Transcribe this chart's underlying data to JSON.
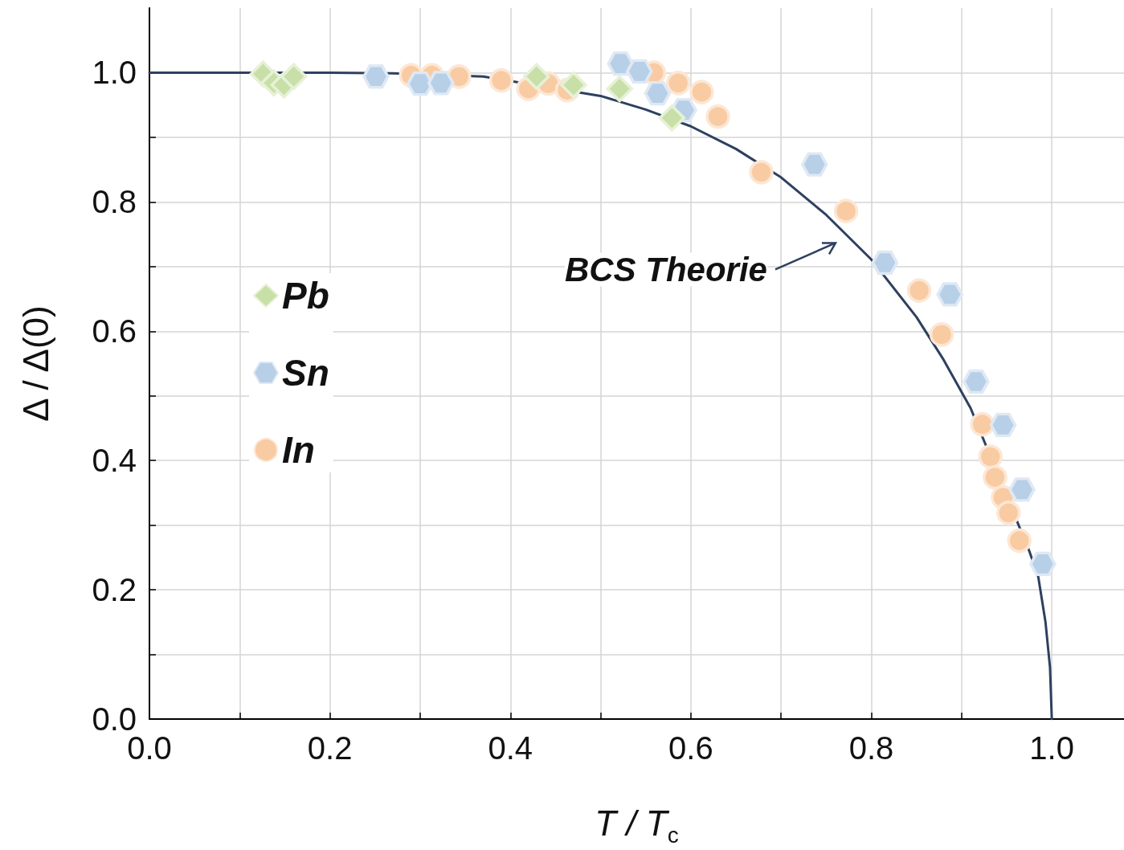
{
  "chart_data": {
    "type": "scatter",
    "xlabel": "T / T$_{c}$",
    "ylabel": "Δ / Δ(0)",
    "xlim": [
      0,
      1.08
    ],
    "ylim": [
      0,
      1.1
    ],
    "xticks": [
      {
        "value": 0,
        "label": "0.0"
      },
      {
        "value": 0.1,
        "label": null
      },
      {
        "value": 0.2,
        "label": "0.2"
      },
      {
        "value": 0.3,
        "label": null
      },
      {
        "value": 0.4,
        "label": "0.4"
      },
      {
        "value": 0.5,
        "label": null
      },
      {
        "value": 0.6,
        "label": "0.6"
      },
      {
        "value": 0.7,
        "label": null
      },
      {
        "value": 0.8,
        "label": "0.8"
      },
      {
        "value": 0.9,
        "label": null
      },
      {
        "value": 1,
        "label": "1.0"
      }
    ],
    "yticks": [
      {
        "value": 0,
        "label": "0.0"
      },
      {
        "value": 0.1,
        "label": null
      },
      {
        "value": 0.2,
        "label": "0.2"
      },
      {
        "value": 0.3,
        "label": null
      },
      {
        "value": 0.4,
        "label": "0.4"
      },
      {
        "value": 0.5,
        "label": null
      },
      {
        "value": 0.6,
        "label": "0.6"
      },
      {
        "value": 0.7,
        "label": null
      },
      {
        "value": 0.8,
        "label": "0.8"
      },
      {
        "value": 0.9,
        "label": null
      },
      {
        "value": 1,
        "label": "1.0"
      }
    ],
    "grid": true,
    "legend": "left",
    "annotations": [
      "BCS Theorie"
    ],
    "series": [
      {
        "type": "line",
        "color": "#2e4060",
        "marker": "none",
        "line_style": "solid",
        "x": [
          0,
          0.1,
          0.2,
          0.27,
          0.37,
          0.5,
          0.55,
          0.6,
          0.65,
          0.7,
          0.75,
          0.8,
          0.85,
          0.88,
          0.91,
          0.975,
          0.985,
          0.993,
          0.998,
          1
        ],
        "values": [
          1,
          1,
          1,
          0.999,
          0.994,
          0.964,
          0.943,
          0.917,
          0.882,
          0.838,
          0.78,
          0.711,
          0.622,
          0.556,
          0.481,
          0.26,
          0.22,
          0.15,
          0.08,
          0
        ]
      },
      {
        "name": "Pb",
        "color": "#c8e0a8",
        "marker": "diamond",
        "x": [
          0.126,
          0.138,
          0.149,
          0.16,
          0.429,
          0.47,
          0.521,
          0.579
        ],
        "values": [
          0.998,
          0.984,
          0.981,
          0.994,
          0.994,
          0.981,
          0.975,
          0.93
        ]
      },
      {
        "name": "Sn",
        "color": "#b8cfe8",
        "x": [
          0.251,
          0.3,
          0.323,
          0.522,
          0.543,
          0.563,
          0.592,
          0.737,
          0.815,
          0.887,
          0.916,
          0.946,
          0.967,
          0.99
        ],
        "values": [
          0.994,
          0.983,
          0.984,
          1.014,
          1.002,
          0.968,
          0.942,
          0.858,
          0.706,
          0.657,
          0.522,
          0.455,
          0.355,
          0.24
        ]
      },
      {
        "name": "In",
        "color": "#f9cba3",
        "marker": "circle",
        "x": [
          0.29,
          0.313,
          0.343,
          0.39,
          0.42,
          0.442,
          0.463,
          0.559,
          0.586,
          0.612,
          0.63,
          0.678,
          0.772,
          0.853,
          0.878,
          0.923,
          0.932,
          0.937,
          0.946,
          0.952,
          0.964
        ],
        "values": [
          0.996,
          0.996,
          0.994,
          0.988,
          0.975,
          0.983,
          0.973,
          1.0,
          0.984,
          0.97,
          0.932,
          0.846,
          0.786,
          0.663,
          0.595,
          0.456,
          0.406,
          0.374,
          0.343,
          0.319,
          0.276
        ]
      }
    ]
  }
}
